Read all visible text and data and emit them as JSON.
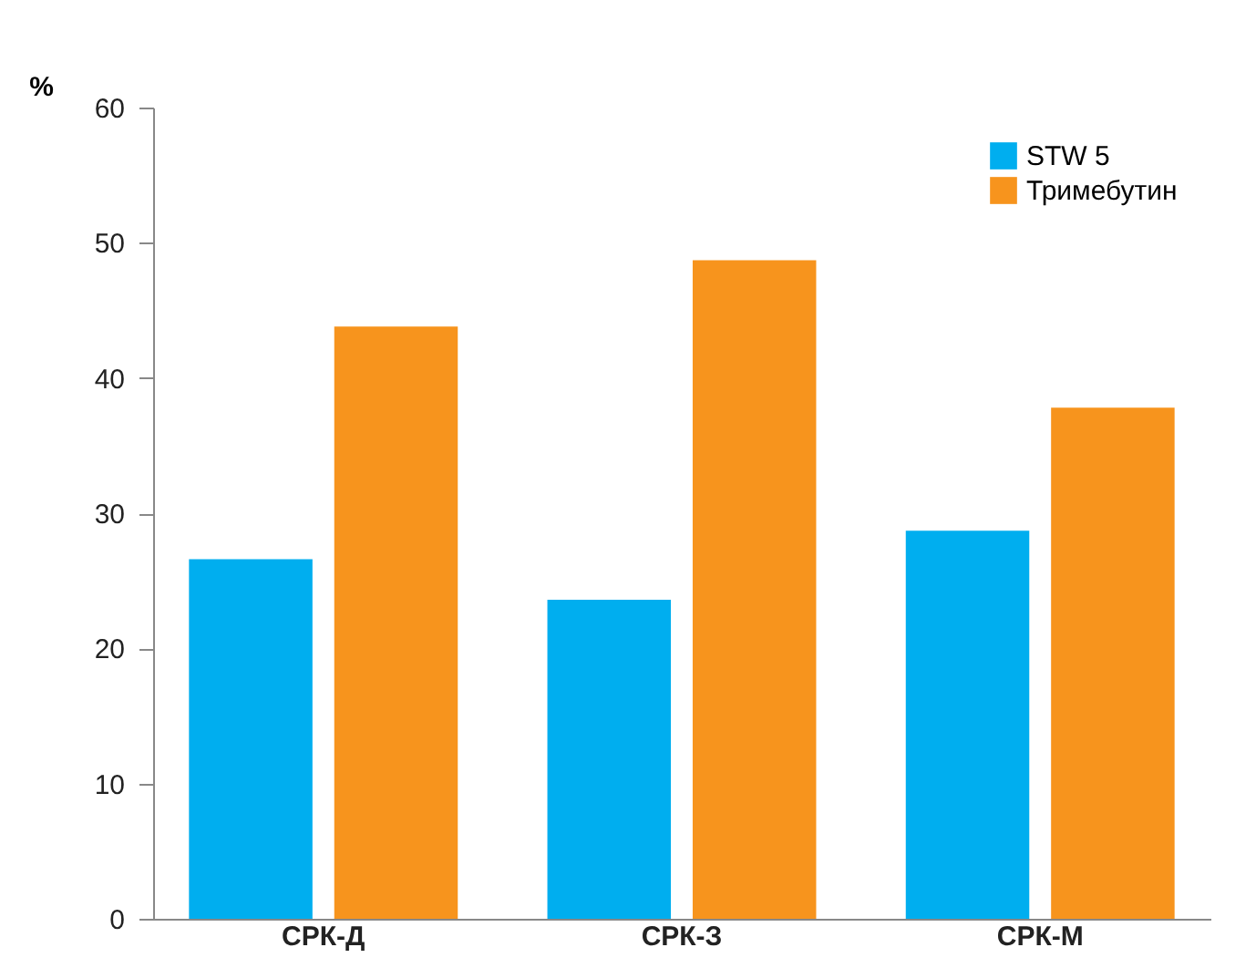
{
  "chart_data": {
    "type": "bar",
    "ylabel": "%",
    "categories": [
      "СРК-Д",
      "СРК-З",
      "СРК-М"
    ],
    "series": [
      {
        "name": "STW 5",
        "color": "#00aeef",
        "values": [
          26.6,
          23.6,
          28.7
        ]
      },
      {
        "name": "Тримебутин",
        "color": "#f7941d",
        "values": [
          43.8,
          48.7,
          37.8
        ]
      }
    ],
    "ylim": [
      0,
      60
    ],
    "yticks": [
      0,
      10,
      20,
      30,
      40,
      50,
      60
    ],
    "grid": false,
    "legend": "top right"
  }
}
